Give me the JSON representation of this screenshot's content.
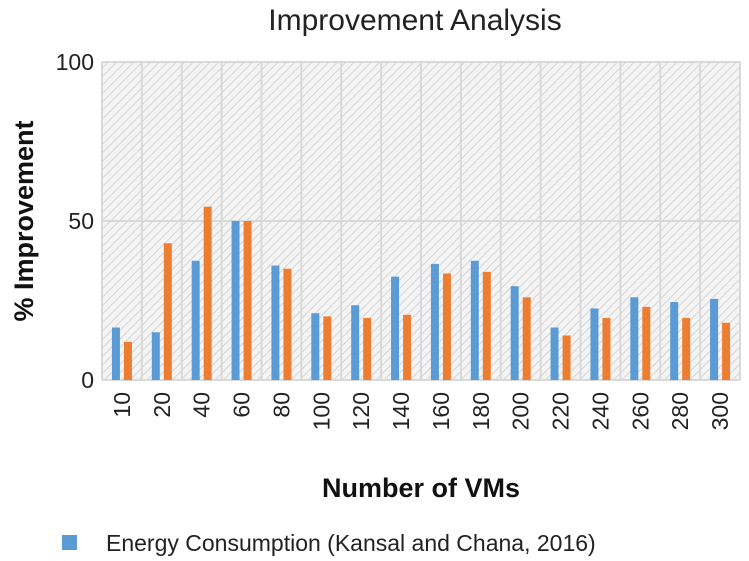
{
  "chart_data": {
    "type": "bar",
    "title": "Improvement Analysis",
    "xlabel": "Number of VMs",
    "ylabel": "% Improvement",
    "ylim": [
      0,
      100
    ],
    "yticks": [
      0,
      50,
      100
    ],
    "categories": [
      "10",
      "20",
      "40",
      "60",
      "80",
      "100",
      "120",
      "140",
      "160",
      "180",
      "200",
      "220",
      "240",
      "260",
      "280",
      "300"
    ],
    "series": [
      {
        "name": "Energy Consumption (Kansal and Chana, 2016)",
        "color": "#5b9bd5",
        "values": [
          16.5,
          15,
          37.5,
          50,
          36,
          21,
          23.5,
          32.5,
          36.5,
          37.5,
          29.5,
          16.5,
          22.5,
          26,
          24.5,
          25.5
        ]
      },
      {
        "color": "#ed7d31",
        "values": [
          12,
          43,
          54.5,
          50,
          35,
          20,
          19.5,
          20.5,
          33.5,
          34,
          26,
          14,
          19.5,
          23,
          19.5,
          18
        ]
      }
    ],
    "grid": true,
    "legend_position": "bottom"
  }
}
